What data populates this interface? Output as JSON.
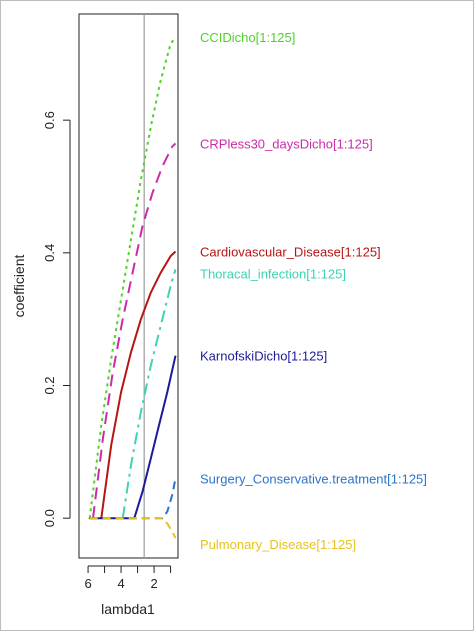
{
  "chart_data": {
    "type": "line",
    "title": "",
    "xlabel": "lambda1",
    "ylabel": "coefficient",
    "x_reversed": true,
    "xlim": [
      6.55,
      0.55
    ],
    "ylim": [
      -0.06,
      0.76
    ],
    "xticks": [
      6,
      4,
      2
    ],
    "xtick_minor": [
      5,
      3,
      1
    ],
    "yticks": [
      0.0,
      0.2,
      0.4,
      0.6
    ],
    "ytick_labels": [
      "0.0",
      "0.2",
      "0.4",
      "0.6"
    ],
    "vline_x": 2.6,
    "grid": false,
    "series": [
      {
        "name": "CCIDicho[1:125]",
        "color": "#4fd12a",
        "dash": "3,4",
        "x": [
          5.9,
          5.2,
          4.6,
          4.0,
          3.4,
          2.8,
          2.2,
          1.6,
          1.0,
          0.7
        ],
        "y": [
          0.0,
          0.14,
          0.24,
          0.33,
          0.42,
          0.51,
          0.59,
          0.66,
          0.715,
          0.725
        ]
      },
      {
        "name": "CRPless30_daysDicho[1:125]",
        "color": "#cc2ba8",
        "dash": "12,7",
        "x": [
          5.7,
          5.1,
          4.5,
          3.9,
          3.3,
          2.7,
          2.1,
          1.5,
          0.9,
          0.7
        ],
        "y": [
          0.0,
          0.12,
          0.22,
          0.3,
          0.37,
          0.44,
          0.49,
          0.53,
          0.56,
          0.565
        ]
      },
      {
        "name": "Cardiovascular_Disease[1:125]",
        "color": "#b81414",
        "dash": "",
        "x": [
          5.2,
          4.6,
          4.0,
          3.4,
          2.8,
          2.2,
          1.6,
          1.0,
          0.7
        ],
        "y": [
          0.0,
          0.11,
          0.19,
          0.25,
          0.3,
          0.34,
          0.37,
          0.395,
          0.402
        ]
      },
      {
        "name": "Thoracal_infection[1:125]",
        "color": "#3ed3b2",
        "dash": "12,5,3,5",
        "x": [
          3.9,
          3.4,
          2.8,
          2.2,
          1.6,
          1.0,
          0.7
        ],
        "y": [
          0.0,
          0.08,
          0.16,
          0.23,
          0.29,
          0.35,
          0.375
        ]
      },
      {
        "name": "KarnofskiDicho[1:125]",
        "color": "#1c1a99",
        "dash": "",
        "x": [
          5.9,
          3.2,
          2.7,
          2.2,
          1.7,
          1.2,
          0.7
        ],
        "y": [
          0.0,
          0.0,
          0.04,
          0.09,
          0.14,
          0.19,
          0.245
        ]
      },
      {
        "name": "Surgery_Conservative.treatment[1:125]",
        "color": "#2b74c9",
        "dash": "8,5",
        "x": [
          5.9,
          1.5,
          1.2,
          0.9,
          0.7
        ],
        "y": [
          0.0,
          0.0,
          0.01,
          0.035,
          0.06
        ]
      },
      {
        "name": "Pulmonary_Disease[1:125]",
        "color": "#e8c21e",
        "dash": "8,5",
        "x": [
          5.9,
          1.5,
          1.2,
          0.9,
          0.7
        ],
        "y": [
          0.0,
          0.0,
          -0.008,
          -0.02,
          -0.03
        ]
      }
    ]
  }
}
